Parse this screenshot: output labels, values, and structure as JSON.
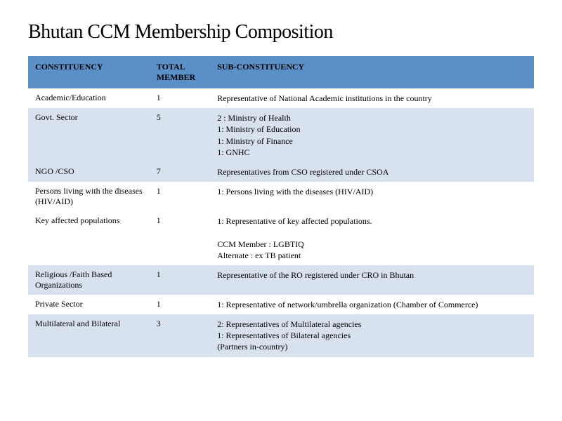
{
  "title": "Bhutan CCM Membership Composition",
  "table": {
    "columns": [
      "CONSTITUENCY",
      "TOTAL MEMBER",
      "SUB-CONSTITUENCY"
    ],
    "header_bg": "#5b8fc7",
    "row_alt_bg": "#d8e2ee",
    "row_bg": "#ffffff",
    "font_size": 12,
    "title_fontsize": 28,
    "rows": [
      {
        "constituency": "Academic/Education",
        "total": "1",
        "sub": "Representative of National Academic institutions in the country",
        "shade": "white"
      },
      {
        "constituency": "Govt. Sector",
        "total": "5",
        "sub": "2 : Ministry of Health\n1: Ministry of Education\n1: Ministry of Finance\n1: GNHC",
        "shade": "light"
      },
      {
        "constituency": "NGO /CSO",
        "total": "7",
        "sub": "Representatives from CSO registered under CSOA",
        "shade": "light"
      },
      {
        "constituency": "Persons living with the diseases (HIV/AID)",
        "total": "1",
        "sub": "1: Persons living with the diseases (HIV/AID)",
        "shade": "white"
      },
      {
        "constituency": "Key affected populations",
        "total": "1",
        "sub": "1: Representative of key affected populations.\n\nCCM Member : LGBTIQ\nAlternate : ex TB patient",
        "shade": "white"
      },
      {
        "constituency": "Religious /Faith Based Organizations",
        "total": "1",
        "sub": "Representative of the RO registered under CRO in Bhutan",
        "shade": "light"
      },
      {
        "constituency": "Private Sector",
        "total": "1",
        "sub": "1: Representative of network/umbrella organization (Chamber of Commerce)",
        "shade": "white"
      },
      {
        "constituency": "Multilateral and Bilateral",
        "total": "3",
        "sub": "2: Representatives of Multilateral agencies\n1: Representatives of Bilateral agencies\n(Partners in-country)",
        "shade": "light"
      }
    ]
  }
}
